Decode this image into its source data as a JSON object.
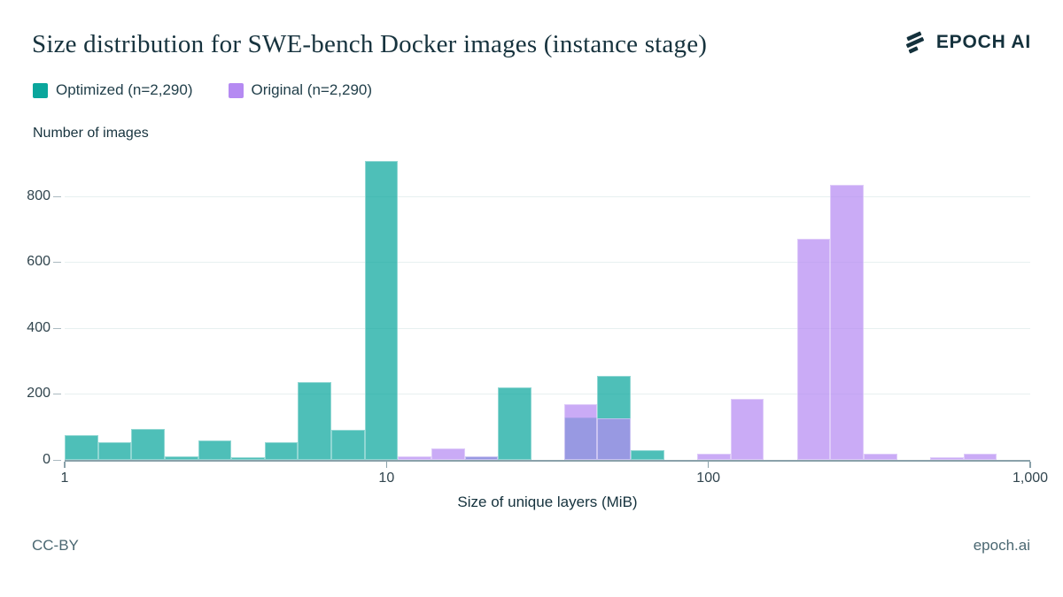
{
  "header": {
    "title": "Size distribution for SWE-bench Docker images (instance stage)",
    "logo_text": "EPOCH AI"
  },
  "legend": [
    {
      "label": "Optimized (n=2,290)",
      "swatch_color": "#0aa69c"
    },
    {
      "label": "Original (n=2,290)",
      "swatch_color": "#b58af2"
    }
  ],
  "chart_data": {
    "type": "bar",
    "subtype": "log-binned histogram, two overlapping series",
    "title": "Size distribution for SWE-bench Docker images (instance stage)",
    "ylabel": "Number of images",
    "xlabel": "Size of unique layers (MiB)",
    "x_scale": "log10",
    "xlim": [
      1,
      1000
    ],
    "ylim": [
      0,
      925
    ],
    "grid": "horizontal only",
    "legend_position": "top-left above plot",
    "x_ticks": [
      "1",
      "10",
      "100",
      "1,000"
    ],
    "x_tick_values": [
      1,
      10,
      100,
      1000
    ],
    "y_ticks": [
      0,
      200,
      400,
      600,
      800
    ],
    "series": [
      {
        "name": "Optimized (n=2,290)",
        "color": "rgba(10,166,156,0.72)",
        "legend_color": "#0aa69c"
      },
      {
        "name": "Original (n=2,290)",
        "color": "rgba(181,138,242,0.72)",
        "legend_color": "#b58af2"
      }
    ],
    "bins": [
      {
        "range": [
          1.0,
          1.27
        ],
        "optimized": 75,
        "original": 0
      },
      {
        "range": [
          1.27,
          1.61
        ],
        "optimized": 55,
        "original": 0
      },
      {
        "range": [
          1.61,
          2.05
        ],
        "optimized": 95,
        "original": 0
      },
      {
        "range": [
          2.05,
          2.6
        ],
        "optimized": 10,
        "original": 0
      },
      {
        "range": [
          2.6,
          3.3
        ],
        "optimized": 60,
        "original": 0
      },
      {
        "range": [
          3.3,
          4.18
        ],
        "optimized": 8,
        "original": 0
      },
      {
        "range": [
          4.18,
          5.31
        ],
        "optimized": 55,
        "original": 0
      },
      {
        "range": [
          5.31,
          6.74
        ],
        "optimized": 235,
        "original": 0
      },
      {
        "range": [
          6.74,
          8.55
        ],
        "optimized": 90,
        "original": 0
      },
      {
        "range": [
          8.55,
          10.86
        ],
        "optimized": 905,
        "original": 0
      },
      {
        "range": [
          10.86,
          13.78
        ],
        "optimized": 0,
        "original": 10
      },
      {
        "range": [
          13.78,
          17.49
        ],
        "optimized": 0,
        "original": 35
      },
      {
        "range": [
          17.49,
          22.21
        ],
        "optimized": 10,
        "original": 10
      },
      {
        "range": [
          22.21,
          28.19
        ],
        "optimized": 220,
        "original": 0
      },
      {
        "range": [
          35.63,
          45.2
        ],
        "optimized": 130,
        "original": 170
      },
      {
        "range": [
          45.2,
          57.4
        ],
        "optimized": 255,
        "original": 125
      },
      {
        "range": [
          57.4,
          72.8
        ],
        "optimized": 30,
        "original": 0
      },
      {
        "range": [
          92.4,
          117.2
        ],
        "optimized": 0,
        "original": 20
      },
      {
        "range": [
          117.2,
          148.7
        ],
        "optimized": 0,
        "original": 185
      },
      {
        "range": [
          188.7,
          239.5
        ],
        "optimized": 0,
        "original": 670
      },
      {
        "range": [
          239.5,
          304.0
        ],
        "optimized": 0,
        "original": 835
      },
      {
        "range": [
          304.0,
          385.8
        ],
        "optimized": 0,
        "original": 18
      },
      {
        "range": [
          489.6,
          621.2
        ],
        "optimized": 0,
        "original": 7
      },
      {
        "range": [
          621.2,
          788.3
        ],
        "optimized": 0,
        "original": 18
      }
    ]
  },
  "footer": {
    "license": "CC-BY",
    "site": "epoch.ai"
  }
}
